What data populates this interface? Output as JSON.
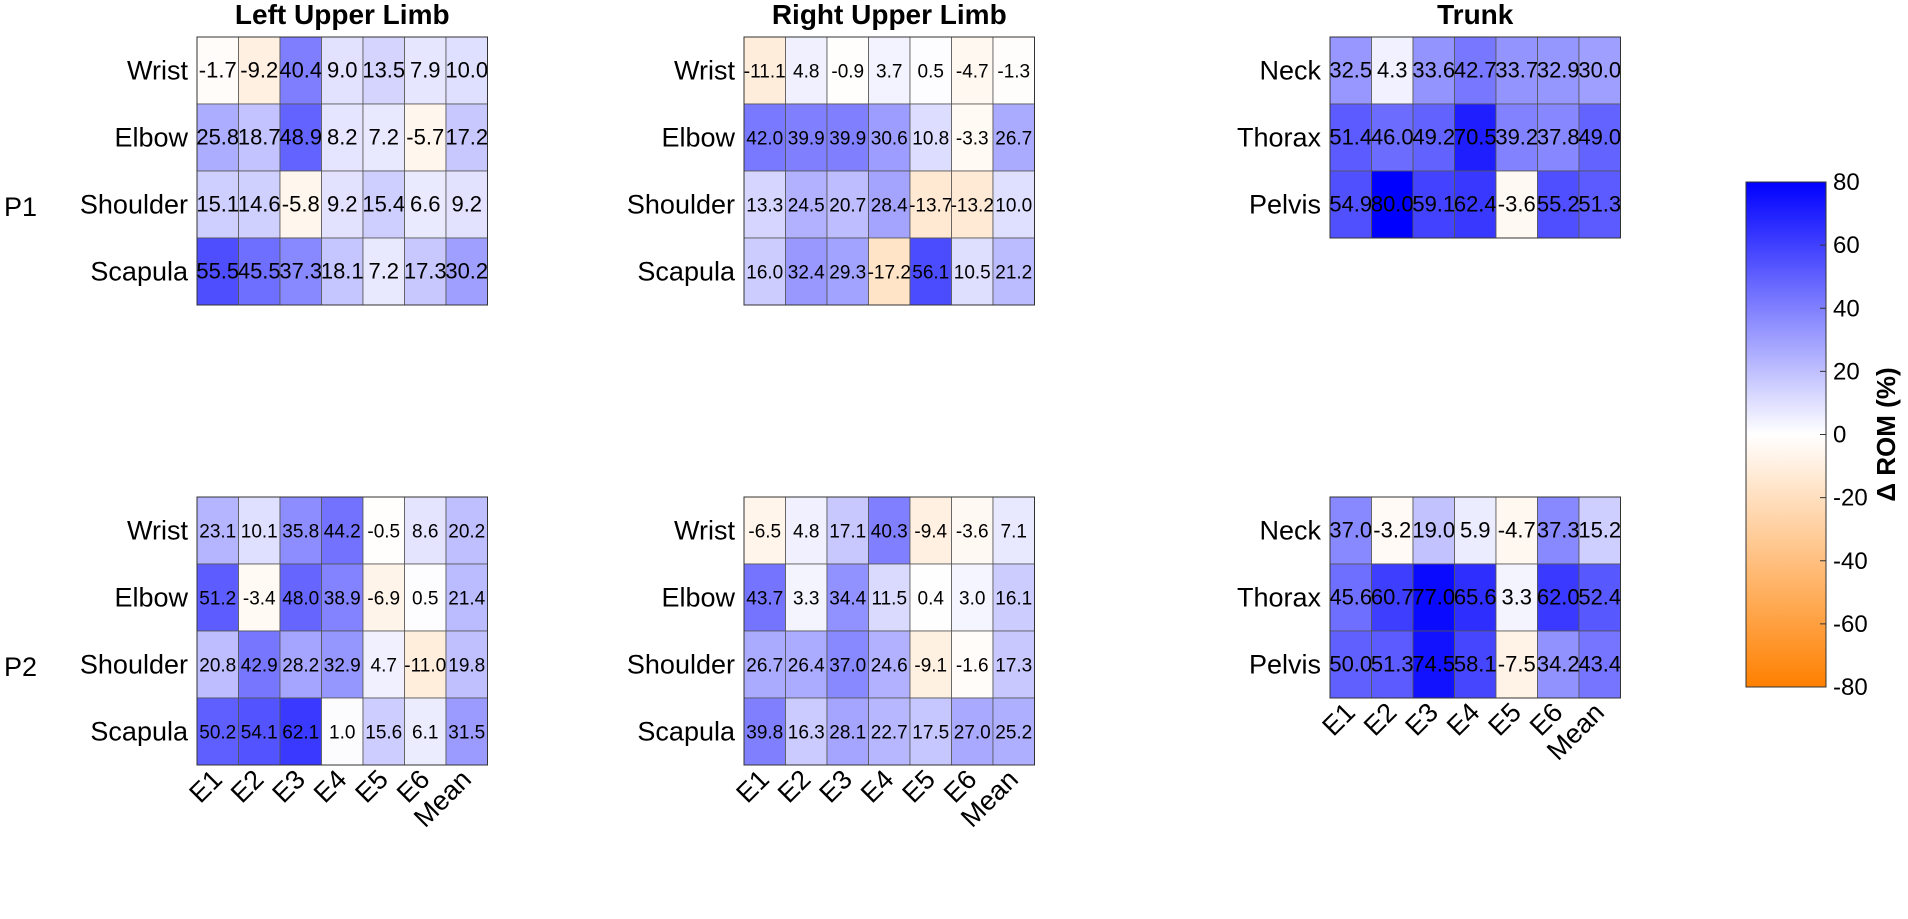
{
  "chart_data": {
    "type": "heatmap",
    "colorbar": {
      "label": "Δ ROM (%)",
      "ticks": [
        80,
        60,
        40,
        20,
        0,
        -20,
        -40,
        -60,
        -80
      ],
      "range": [
        -80,
        80
      ],
      "colors": {
        "max": "#0000ff",
        "zero": "#ffffff",
        "min": "#ff8000"
      }
    },
    "column_titles": [
      "Left Upper Limb",
      "Right Upper Limb",
      "Trunk"
    ],
    "row_group_labels": [
      "P1",
      "P2"
    ],
    "column_labels": [
      "E1",
      "E2",
      "E3",
      "E4",
      "E5",
      "E6",
      "Mean"
    ],
    "panels": [
      {
        "title": "Left Upper Limb",
        "group": "P1",
        "rows": [
          "Wrist",
          "Elbow",
          "Shoulder",
          "Scapula"
        ],
        "values": [
          [
            -1.7,
            -9.2,
            40.4,
            9.0,
            13.5,
            7.9,
            10.0
          ],
          [
            25.8,
            18.7,
            48.9,
            8.2,
            7.2,
            -5.7,
            17.2
          ],
          [
            15.1,
            14.6,
            -5.8,
            9.2,
            15.4,
            6.6,
            9.2
          ],
          [
            55.5,
            45.5,
            37.3,
            18.1,
            7.2,
            17.3,
            30.2
          ]
        ],
        "labels": [
          [
            "-1.7",
            "-9.2",
            "40.4",
            "9.0",
            "13.5",
            "7.9",
            "10.0"
          ],
          [
            "25.8",
            "18.7",
            "48.9",
            "8.2",
            "7.2",
            "-5.7",
            "17.2"
          ],
          [
            "15.1",
            "14.6",
            "-5.8",
            "9.2",
            "15.4",
            "6.6",
            "9.2"
          ],
          [
            "55.5",
            "45.5",
            "37.3",
            "18.1",
            "7.2",
            "17.3",
            "30.2"
          ]
        ]
      },
      {
        "title": "Right Upper Limb",
        "group": "P1",
        "rows": [
          "Wrist",
          "Elbow",
          "Shoulder",
          "Scapula"
        ],
        "values": [
          [
            -11.1,
            4.8,
            -0.9,
            3.7,
            0.5,
            -4.7,
            -1.3
          ],
          [
            42.0,
            39.9,
            39.9,
            30.6,
            10.8,
            -3.3,
            26.7
          ],
          [
            13.3,
            24.5,
            20.7,
            28.4,
            -13.7,
            -13.2,
            10.0
          ],
          [
            16.0,
            32.4,
            29.3,
            -17.2,
            56.1,
            10.5,
            21.2
          ]
        ],
        "labels": [
          [
            "-11.1",
            "4.8",
            "-0.9",
            "3.7",
            "0.5",
            "-4.7",
            "-1.3"
          ],
          [
            "42.0",
            "39.9",
            "39.9",
            "30.6",
            "10.8",
            "-3.3",
            "26.7"
          ],
          [
            "13.3",
            "24.5",
            "20.7",
            "28.4",
            "-13.7",
            "-13.2",
            "10.0"
          ],
          [
            "16.0",
            "32.4",
            "29.3",
            "-17.2",
            "56.1",
            "10.5",
            "21.2"
          ]
        ]
      },
      {
        "title": "Trunk",
        "group": "P1",
        "rows": [
          "Neck",
          "Thorax",
          "Pelvis"
        ],
        "values": [
          [
            32.5,
            4.3,
            33.6,
            42.7,
            33.7,
            32.9,
            30.0
          ],
          [
            51.4,
            46.0,
            49.2,
            70.5,
            39.2,
            37.8,
            49.0
          ],
          [
            54.9,
            80.0,
            59.1,
            62.4,
            -3.6,
            55.2,
            51.3
          ]
        ],
        "labels": [
          [
            "32.5",
            "4.3",
            "33.6",
            "42.7",
            "33.7",
            "32.9",
            "30.0"
          ],
          [
            "51.4",
            "46.0",
            "49.2",
            "70.5",
            "39.2",
            "37.8",
            "49.0"
          ],
          [
            "54.9",
            "80.0",
            "59.1",
            "62.4",
            "-3.6",
            "55.2",
            "51.3"
          ]
        ]
      },
      {
        "title": "Left Upper Limb",
        "group": "P2",
        "rows": [
          "Wrist",
          "Elbow",
          "Shoulder",
          "Scapula"
        ],
        "values": [
          [
            23.1,
            10.1,
            35.8,
            44.2,
            -0.5,
            8.6,
            20.2
          ],
          [
            51.2,
            -3.4,
            48.0,
            38.9,
            -6.9,
            0.5,
            21.4
          ],
          [
            20.8,
            42.9,
            28.2,
            32.9,
            4.7,
            -11.0,
            19.8
          ],
          [
            50.2,
            54.1,
            62.1,
            1.0,
            15.6,
            6.1,
            31.5
          ]
        ],
        "labels": [
          [
            "23.1",
            "10.1",
            "35.8",
            "44.2",
            "-0.5",
            "8.6",
            "20.2"
          ],
          [
            "51.2",
            "-3.4",
            "48.0",
            "38.9",
            "-6.9",
            "0.5",
            "21.4"
          ],
          [
            "20.8",
            "42.9",
            "28.2",
            "32.9",
            "4.7",
            "-11.0",
            "19.8"
          ],
          [
            "50.2",
            "54.1",
            "62.1",
            "1.0",
            "15.6",
            "6.1",
            "31.5"
          ]
        ]
      },
      {
        "title": "Right Upper Limb",
        "group": "P2",
        "rows": [
          "Wrist",
          "Elbow",
          "Shoulder",
          "Scapula"
        ],
        "values": [
          [
            -6.5,
            4.8,
            17.1,
            40.3,
            -9.4,
            -3.6,
            7.1
          ],
          [
            43.7,
            3.3,
            34.4,
            11.5,
            0.4,
            3.0,
            16.1
          ],
          [
            26.7,
            26.4,
            37.0,
            24.6,
            -9.1,
            -1.6,
            17.3
          ],
          [
            39.8,
            16.3,
            28.1,
            22.7,
            17.5,
            27.0,
            25.2
          ]
        ],
        "labels": [
          [
            "-6.5",
            "4.8",
            "17.1",
            "40.3",
            "-9.4",
            "-3.6",
            "7.1"
          ],
          [
            "43.7",
            "3.3",
            "34.4",
            "11.5",
            "0.4",
            "3.0",
            "16.1"
          ],
          [
            "26.7",
            "26.4",
            "37.0",
            "24.6",
            "-9.1",
            "-1.6",
            "17.3"
          ],
          [
            "39.8",
            "16.3",
            "28.1",
            "22.7",
            "17.5",
            "27.0",
            "25.2"
          ]
        ]
      },
      {
        "title": "Trunk",
        "group": "P2",
        "rows": [
          "Neck",
          "Thorax",
          "Pelvis"
        ],
        "values": [
          [
            37.0,
            -3.2,
            19.0,
            5.9,
            -4.7,
            37.3,
            15.2
          ],
          [
            45.6,
            60.7,
            77.0,
            65.6,
            3.3,
            62.0,
            52.4
          ],
          [
            50.0,
            51.3,
            74.5,
            58.1,
            -7.5,
            34.2,
            43.4
          ]
        ],
        "labels": [
          [
            "37.0",
            "-3.2",
            "19.0",
            "5.9",
            "-4.7",
            "37.3",
            "15.2"
          ],
          [
            "45.6",
            "60.7",
            "77.0",
            "65.6",
            "3.3",
            "62.0",
            "52.4"
          ],
          [
            "50.0",
            "51.3",
            "74.5",
            "58.1",
            "-7.5",
            "34.2",
            "43.4"
          ]
        ]
      }
    ]
  }
}
